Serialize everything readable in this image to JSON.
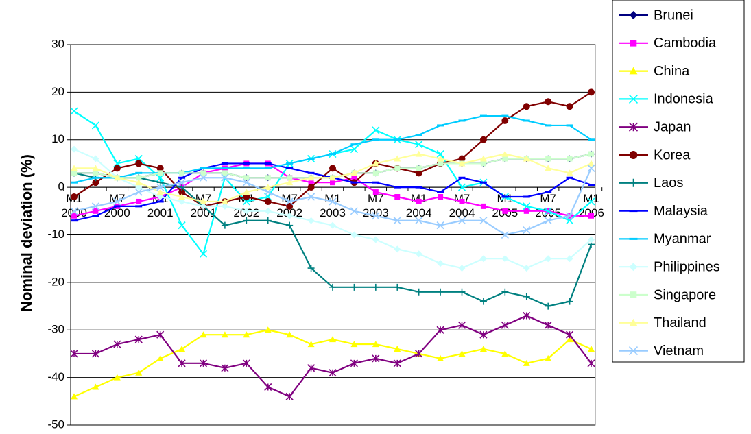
{
  "chart_data": {
    "type": "line",
    "y_label": "Nominal deviation (%)",
    "categories": [
      "M1 2000",
      null,
      "M7 2000",
      null,
      "M1 2001",
      null,
      "M7 2001",
      null,
      "M1 2002",
      null,
      "M7 2002",
      null,
      "M1 2003",
      null,
      "M7 2003",
      null,
      "M1 2004",
      null,
      "M7 2004",
      null,
      "M1 2005",
      null,
      "M7 2005",
      null,
      "M1 2006"
    ],
    "ylim": [
      -50,
      30
    ],
    "yticks": [
      -50,
      -40,
      -30,
      -20,
      -10,
      0,
      10,
      20,
      30
    ],
    "grid": true,
    "legend": "right",
    "series": [
      {
        "name": "Brunei",
        "color": "#000080",
        "marker": "diamond",
        "values": [
          3,
          3,
          2,
          2,
          3,
          3,
          3,
          3,
          2,
          2,
          2,
          2,
          2,
          3,
          3,
          4,
          4,
          5,
          5,
          5,
          6,
          6,
          6,
          6,
          7
        ]
      },
      {
        "name": "Cambodia",
        "color": "#FF00FF",
        "marker": "square",
        "values": [
          -6,
          -5,
          -4,
          -3,
          -2,
          0,
          3,
          4,
          5,
          5,
          2,
          1,
          1,
          2,
          -1,
          -2,
          -3,
          -2,
          -3,
          -4,
          -5,
          -5,
          -5,
          -6,
          -6
        ]
      },
      {
        "name": "China",
        "color": "#FFFF00",
        "marker": "triangle",
        "values": [
          -44,
          -42,
          -40,
          -39,
          -36,
          -34,
          -31,
          -31,
          -31,
          -30,
          -31,
          -33,
          -32,
          -33,
          -33,
          -34,
          -35,
          -36,
          -35,
          -34,
          -35,
          -37,
          -36,
          -32,
          -34
        ]
      },
      {
        "name": "Indonesia",
        "color": "#00FFFF",
        "marker": "x",
        "values": [
          16,
          13,
          5,
          6,
          2,
          -8,
          -14,
          2,
          -3,
          -2,
          5,
          6,
          7,
          8,
          12,
          10,
          9,
          7,
          0,
          1,
          -2,
          -4,
          -5,
          -7,
          -3
        ]
      },
      {
        "name": "Japan",
        "color": "#800080",
        "marker": "asterisk",
        "values": [
          -35,
          -35,
          -33,
          -32,
          -31,
          -37,
          -37,
          -38,
          -37,
          -42,
          -44,
          -38,
          -39,
          -37,
          -36,
          -37,
          -35,
          -30,
          -29,
          -31,
          -29,
          -27,
          -29,
          -31,
          -37
        ]
      },
      {
        "name": "Korea",
        "color": "#800000",
        "marker": "circle",
        "values": [
          -2,
          1,
          4,
          5,
          4,
          -1,
          -4,
          -3,
          -2,
          -3,
          -4,
          0,
          4,
          1,
          5,
          4,
          3,
          5,
          6,
          10,
          14,
          17,
          18,
          17,
          20
        ]
      },
      {
        "name": "Laos",
        "color": "#008080",
        "marker": "plus",
        "values": [
          3,
          2,
          2,
          2,
          1,
          0,
          -4,
          -8,
          -7,
          -7,
          -8,
          -17,
          -21,
          -21,
          -21,
          -21,
          -22,
          -22,
          -22,
          -24,
          -22,
          -23,
          -25,
          -24,
          -12
        ]
      },
      {
        "name": "Malaysia",
        "color": "#0000FF",
        "marker": "dash",
        "values": [
          -7,
          -6,
          -4,
          -4,
          -3,
          2,
          4,
          5,
          5,
          5,
          4,
          3,
          2,
          1,
          1,
          0,
          0,
          -1,
          2,
          1,
          -2,
          -2,
          -1,
          2,
          0.5
        ]
      },
      {
        "name": "Myanmar",
        "color": "#00CCFF",
        "marker": "dash",
        "values": [
          1,
          2,
          2,
          3,
          3,
          3,
          4,
          4,
          4,
          4,
          5,
          6,
          7,
          9,
          10,
          10,
          11,
          13,
          14,
          15,
          15,
          14,
          13,
          13,
          10
        ]
      },
      {
        "name": "Philippines",
        "color": "#CCFFFF",
        "marker": "diamond",
        "values": [
          8,
          6,
          2,
          0,
          -2,
          -3,
          -4,
          -4,
          -5,
          -5,
          -6,
          -7,
          -8,
          -10,
          -11,
          -13,
          -14,
          -16,
          -17,
          -15,
          -15,
          -17,
          -15,
          -15,
          -11
        ]
      },
      {
        "name": "Singapore",
        "color": "#CCFFCC",
        "marker": "square",
        "values": [
          3,
          3,
          2,
          2,
          3,
          3,
          3,
          3,
          2,
          2,
          2,
          2,
          2,
          3,
          3,
          4,
          4,
          5,
          5,
          5,
          6,
          6,
          6,
          6,
          7
        ]
      },
      {
        "name": "Thailand",
        "color": "#FFFF99",
        "marker": "triangle",
        "values": [
          4,
          4,
          2,
          1,
          -1,
          -2,
          -3,
          -3,
          -1,
          0,
          1,
          2,
          2,
          3,
          5,
          6,
          7,
          6,
          5,
          6,
          7,
          6,
          4,
          3,
          5
        ]
      },
      {
        "name": "Vietnam",
        "color": "#99CCFF",
        "marker": "x",
        "values": [
          -5,
          -4,
          -3,
          -1,
          0,
          1,
          2,
          2,
          1,
          -1,
          -3,
          -2,
          -3,
          -5,
          -6,
          -7,
          -7,
          -8,
          -7,
          -7,
          -10,
          -9,
          -7,
          -6,
          4
        ]
      }
    ]
  }
}
